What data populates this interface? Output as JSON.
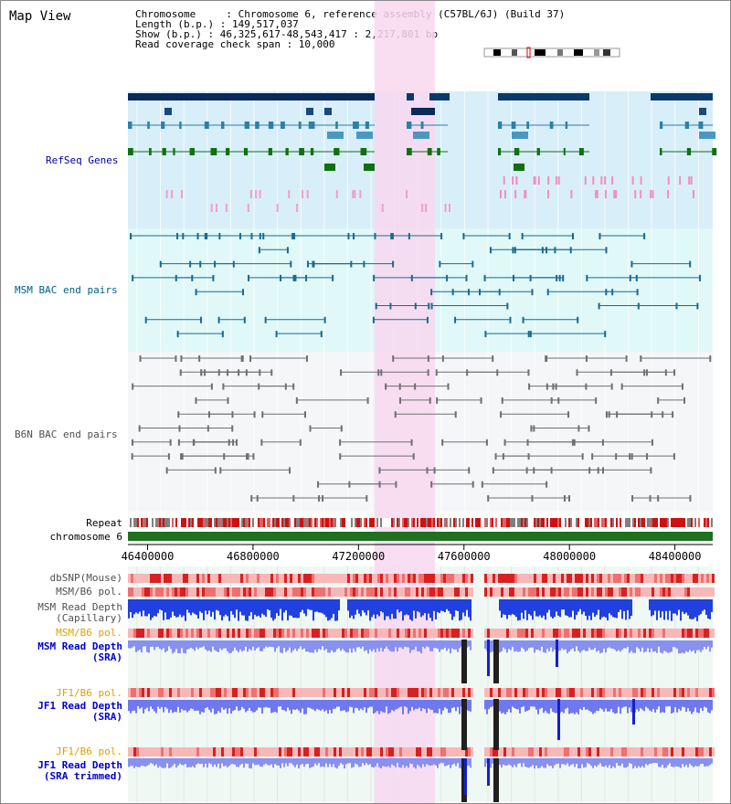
{
  "title": "Map View",
  "info": {
    "chromosome": "Chromosome     : Chromosome 6, reference assembly (C57BL/6J) (Build 37)",
    "length": "Length (b.p.) : 149,517,037",
    "show": "Show (b.p.) : 46,325,617-48,543,417 : 2,217,801 bp",
    "span": "Read coverage check span : 10,000"
  },
  "tracks": {
    "refseq": "RefSeq Genes",
    "msm_bac": "MSM BAC end pairs",
    "b6n_bac": "B6N BAC end pairs",
    "repeat": "Repeat",
    "chromosome": "chromosome 6",
    "dbsnp": "dbSNP(Mouse)",
    "msm_b6_pol_1": "MSM/B6 pol.",
    "msm_depth_cap_1": "MSM Read Depth",
    "msm_depth_cap_2": "(Capillary)",
    "msm_b6_pol_2": "MSM/B6 pol.",
    "msm_depth_sra_1": "MSM Read Depth",
    "msm_depth_sra_2": "(SRA)",
    "jf1_b6_pol_1": "JF1/B6 pol.",
    "jf1_depth_sra_1": "JF1 Read Depth",
    "jf1_depth_sra_2": "(SRA)",
    "jf1_b6_pol_2": "JF1/B6 pol.",
    "jf1_depth_trim_1": "JF1 Read Depth",
    "jf1_depth_trim_2": "(SRA trimmed)"
  },
  "axis": {
    "ticks": [
      "46400000",
      "46800000",
      "47200000",
      "47600000",
      "48000000",
      "48400000"
    ],
    "tick_values": [
      46400000,
      46800000,
      47200000,
      47600000,
      48000000,
      48400000
    ]
  },
  "highlight": {
    "start": 47260000,
    "end": 47490000
  },
  "colors": {
    "refseq_bg": "#d8eef8",
    "msm_bac_bg": "#e0f8f8",
    "b6n_bac_bg": "#f4f6f8",
    "highlight": "#f8d8f0",
    "label_blue": "#0000aa",
    "label_teal": "#006080",
    "label_gray": "#505050",
    "label_orange": "#e0a000",
    "label_darkblue": "#0000cc",
    "chromosome_bar": "#207020"
  }
}
